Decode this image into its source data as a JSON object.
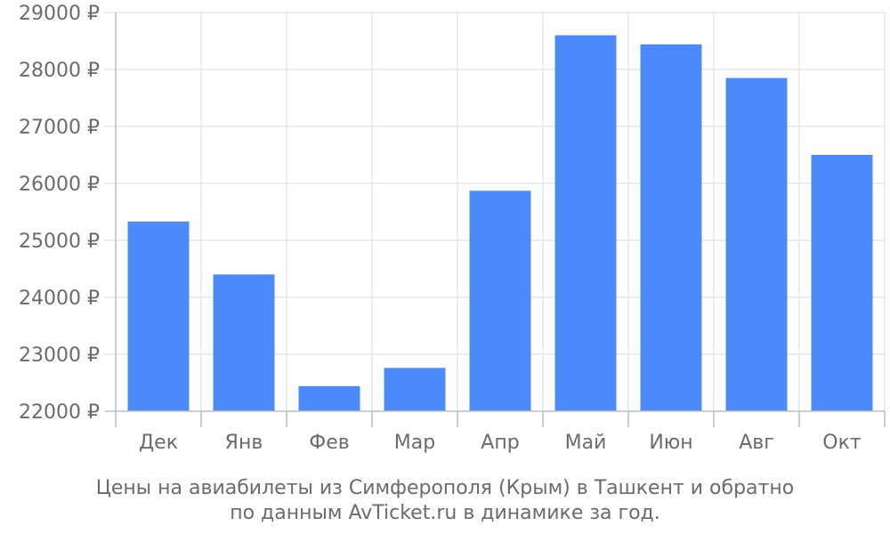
{
  "chart_data": {
    "type": "bar",
    "categories": [
      "Дек",
      "Янв",
      "Фев",
      "Мар",
      "Апр",
      "Май",
      "Июн",
      "Авг",
      "Окт"
    ],
    "values": [
      25330,
      24400,
      22440,
      22760,
      25870,
      28600,
      28440,
      27850,
      26500
    ],
    "ylim": [
      22000,
      29000
    ],
    "yticks": [
      "22000 ₽",
      "23000 ₽",
      "24000 ₽",
      "25000 ₽",
      "26000 ₽",
      "27000 ₽",
      "28000 ₽",
      "29000 ₽"
    ],
    "title": "",
    "xlabel": "",
    "ylabel": "",
    "grid": true,
    "bar_color": "#4d8afc"
  },
  "caption": {
    "line1": "Цены на авиабилеты из Симферополя (Крым) в Ташкент и обратно",
    "line2": "по данным AvTicket.ru в динамике за год."
  }
}
